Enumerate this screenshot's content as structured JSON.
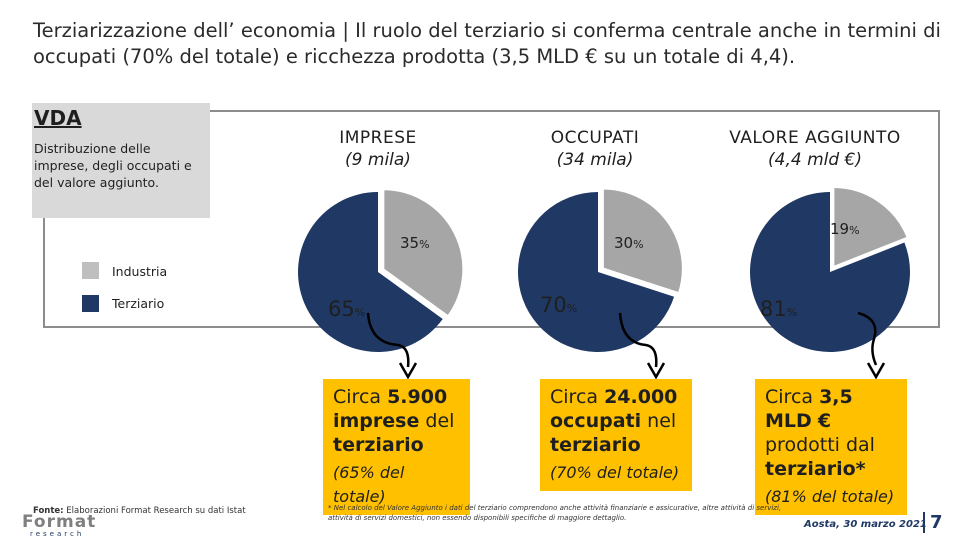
{
  "title": "Terziarizzazione dell’ economia | Il ruolo del terziario si conferma centrale anche in termini di occupati (70% del totale) e ricchezza prodotta (3,5 MLD € su un totale di 4,4).",
  "vda": {
    "label": "VDA",
    "description": "Distribuzione delle imprese, degli occupati e del valore aggiunto."
  },
  "legend": [
    {
      "label": "Industria",
      "color": "#bfbfbf"
    },
    {
      "label": "Terziario",
      "color": "#1f3864"
    }
  ],
  "columns": [
    {
      "title": "IMPRESE",
      "subtitle": "(9 mila)",
      "industria_pct": 35,
      "terziario_pct": 65,
      "industria_label": "35",
      "terziario_label": "65",
      "box": {
        "pre": "Circa ",
        "bold1": "5.900",
        "mid1": " ",
        "bold2": "imprese",
        "mid2": " del ",
        "bold3": "terziario",
        "pct": "(65% del totale)"
      }
    },
    {
      "title": "OCCUPATI",
      "subtitle": "(34 mila)",
      "industria_pct": 30,
      "terziario_pct": 70,
      "industria_label": "30",
      "terziario_label": "70",
      "box": {
        "pre": "Circa ",
        "bold1": "24.000",
        "mid1": " ",
        "bold2": "occupati",
        "mid2": " nel ",
        "bold3": "terziario",
        "pct": "(70% del totale)"
      }
    },
    {
      "title": "VALORE AGGIUNTO",
      "subtitle": "(4,4 mld €)",
      "industria_pct": 19,
      "terziario_pct": 81,
      "industria_label": "19",
      "terziario_label": "81",
      "box": {
        "pre": "Circa ",
        "bold1": "3,5 MLD",
        "mid1": " ",
        "bold2": "€",
        "mid2": " prodotti dal ",
        "bold3": "terziario*",
        "pct": "(81% del totale)"
      }
    }
  ],
  "percent_sign": "%",
  "footnote": "* Nel calcolo del Valore Aggiunto i dati del terziario comprendono anche attività finanziarie e assicurative, altre attività di servizi, attività di servizi domestici, non essendo disponibili specifiche di maggiore dettaglio.",
  "source": {
    "label": "Fonte:",
    "text": " Elaborazioni Format Research su dati Istat"
  },
  "logo": {
    "name": "Format",
    "sub": "research"
  },
  "date": "Aosta, 30 marzo 2021",
  "page": "7",
  "colors": {
    "industria": "#a6a6a6",
    "terziario": "#1f3864",
    "highlight": "#ffc000"
  }
}
